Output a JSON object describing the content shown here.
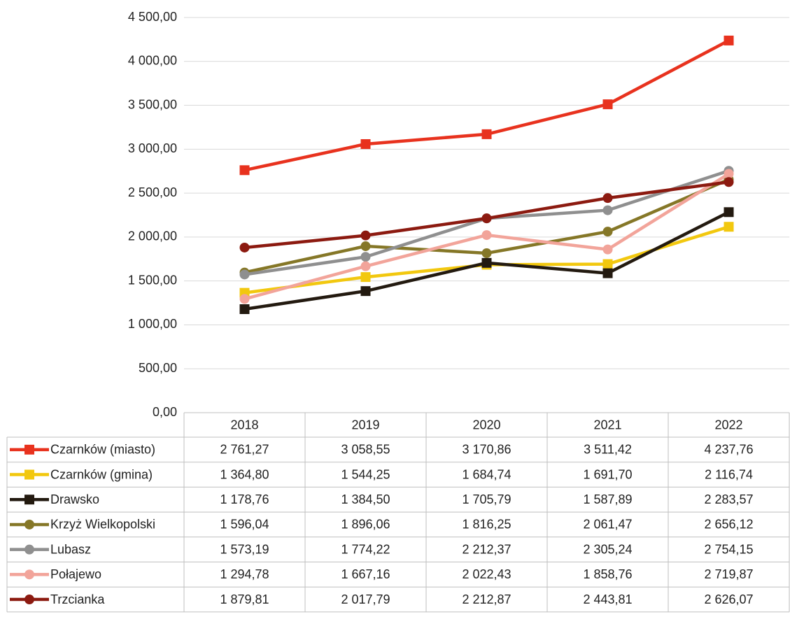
{
  "chart_data": {
    "type": "line",
    "categories": [
      "2018",
      "2019",
      "2020",
      "2021",
      "2022"
    ],
    "ylim": [
      0,
      4500
    ],
    "yticks": [
      {
        "value": 0,
        "label": "0,00"
      },
      {
        "value": 500,
        "label": "500,00"
      },
      {
        "value": 1000,
        "label": "1 000,00"
      },
      {
        "value": 1500,
        "label": "1 500,00"
      },
      {
        "value": 2000,
        "label": "2 000,00"
      },
      {
        "value": 2500,
        "label": "2 500,00"
      },
      {
        "value": 3000,
        "label": "3 000,00"
      },
      {
        "value": 3500,
        "label": "3 500,00"
      },
      {
        "value": 4000,
        "label": "4 000,00"
      },
      {
        "value": 4500,
        "label": "4 500,00"
      }
    ],
    "grid": true,
    "series": [
      {
        "name": "Czarnków (miasto)",
        "color": "#e8321e",
        "marker": "square",
        "values": [
          2761.27,
          3058.55,
          3170.86,
          3511.42,
          4237.76
        ],
        "value_labels": [
          "2 761,27",
          "3 058,55",
          "3 170,86",
          "3 511,42",
          "4 237,76"
        ]
      },
      {
        "name": "Czarnków (gmina)",
        "color": "#f2c80f",
        "marker": "square",
        "values": [
          1364.8,
          1544.25,
          1684.74,
          1691.7,
          2116.74
        ],
        "value_labels": [
          "1 364,80",
          "1 544,25",
          "1 684,74",
          "1 691,70",
          "2 116,74"
        ]
      },
      {
        "name": "Drawsko",
        "color": "#231a10",
        "marker": "square",
        "values": [
          1178.76,
          1384.5,
          1705.79,
          1587.89,
          2283.57
        ],
        "value_labels": [
          "1 178,76",
          "1 384,50",
          "1 705,79",
          "1 587,89",
          "2 283,57"
        ]
      },
      {
        "name": "Krzyż Wielkopolski",
        "color": "#857727",
        "marker": "circle",
        "values": [
          1596.04,
          1896.06,
          1816.25,
          2061.47,
          2656.12
        ],
        "value_labels": [
          "1 596,04",
          "1 896,06",
          "1 816,25",
          "2 061,47",
          "2 656,12"
        ]
      },
      {
        "name": "Lubasz",
        "color": "#8f8f8f",
        "marker": "circle",
        "values": [
          1573.19,
          1774.22,
          2212.37,
          2305.24,
          2754.15
        ],
        "value_labels": [
          "1 573,19",
          "1 774,22",
          "2 212,37",
          "2 305,24",
          "2 754,15"
        ]
      },
      {
        "name": "Połajewo",
        "color": "#f2a49a",
        "marker": "circle",
        "values": [
          1294.78,
          1667.16,
          2022.43,
          1858.76,
          2719.87
        ],
        "value_labels": [
          "1 294,78",
          "1 667,16",
          "2 022,43",
          "1 858,76",
          "2 719,87"
        ]
      },
      {
        "name": "Trzcianka",
        "color": "#8c1a10",
        "marker": "circle",
        "values": [
          1879.81,
          2017.79,
          2212.87,
          2443.81,
          2626.07
        ],
        "value_labels": [
          "1 879,81",
          "2 017,79",
          "2 212,87",
          "2 443,81",
          "2 626,07"
        ]
      }
    ]
  }
}
